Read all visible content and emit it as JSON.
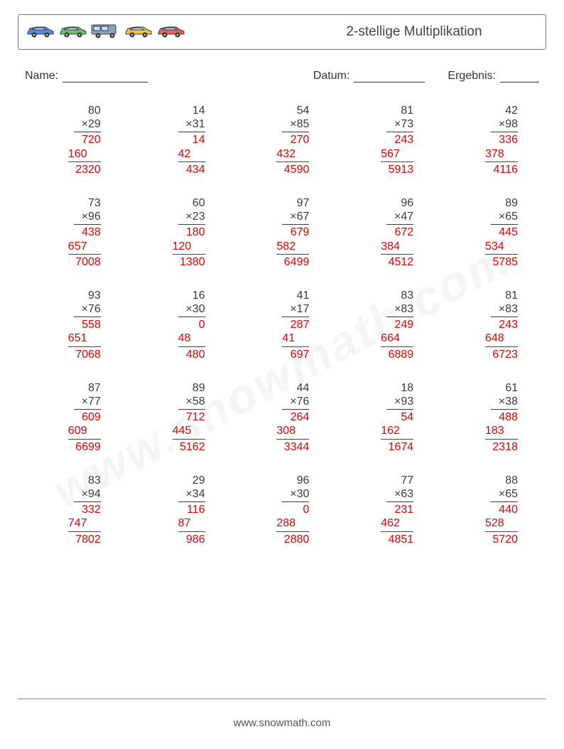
{
  "title": "2-stellige Multiplikation",
  "labels": {
    "name": "Name:",
    "date": "Datum:",
    "result": "Ergebnis:"
  },
  "footer": "www.snowmath.com",
  "watermark": "www.snowmath.com",
  "car_colors": [
    "#5a8bd6",
    "#6ec26e",
    "#8ea0b5",
    "#e8c94c",
    "#e0655c"
  ],
  "problems": [
    {
      "a": "80",
      "b": "×29",
      "p1": "720",
      "p2": "160",
      "ans": "2320"
    },
    {
      "a": "14",
      "b": "×31",
      "p1": "14",
      "p2": "42",
      "ans": "434"
    },
    {
      "a": "54",
      "b": "×85",
      "p1": "270",
      "p2": "432",
      "ans": "4590"
    },
    {
      "a": "81",
      "b": "×73",
      "p1": "243",
      "p2": "567",
      "ans": "5913"
    },
    {
      "a": "42",
      "b": "×98",
      "p1": "336",
      "p2": "378",
      "ans": "4116"
    },
    {
      "a": "73",
      "b": "×96",
      "p1": "438",
      "p2": "657",
      "ans": "7008"
    },
    {
      "a": "60",
      "b": "×23",
      "p1": "180",
      "p2": "120",
      "ans": "1380"
    },
    {
      "a": "97",
      "b": "×67",
      "p1": "679",
      "p2": "582",
      "ans": "6499"
    },
    {
      "a": "96",
      "b": "×47",
      "p1": "672",
      "p2": "384",
      "ans": "4512"
    },
    {
      "a": "89",
      "b": "×65",
      "p1": "445",
      "p2": "534",
      "ans": "5785"
    },
    {
      "a": "93",
      "b": "×76",
      "p1": "558",
      "p2": "651",
      "ans": "7068"
    },
    {
      "a": "16",
      "b": "×30",
      "p1": "0",
      "p2": "48",
      "ans": "480"
    },
    {
      "a": "41",
      "b": "×17",
      "p1": "287",
      "p2": "41",
      "ans": "697"
    },
    {
      "a": "83",
      "b": "×83",
      "p1": "249",
      "p2": "664",
      "ans": "6889"
    },
    {
      "a": "81",
      "b": "×83",
      "p1": "243",
      "p2": "648",
      "ans": "6723"
    },
    {
      "a": "87",
      "b": "×77",
      "p1": "609",
      "p2": "609",
      "ans": "6699"
    },
    {
      "a": "89",
      "b": "×58",
      "p1": "712",
      "p2": "445",
      "ans": "5162"
    },
    {
      "a": "44",
      "b": "×76",
      "p1": "264",
      "p2": "308",
      "ans": "3344"
    },
    {
      "a": "18",
      "b": "×93",
      "p1": "54",
      "p2": "162",
      "ans": "1674"
    },
    {
      "a": "61",
      "b": "×38",
      "p1": "488",
      "p2": "183",
      "ans": "2318"
    },
    {
      "a": "83",
      "b": "×94",
      "p1": "332",
      "p2": "747",
      "ans": "7802"
    },
    {
      "a": "29",
      "b": "×34",
      "p1": "116",
      "p2": "87",
      "ans": "986"
    },
    {
      "a": "96",
      "b": "×30",
      "p1": "0",
      "p2": "288",
      "ans": "2880"
    },
    {
      "a": "77",
      "b": "×63",
      "p1": "231",
      "p2": "462",
      "ans": "4851"
    },
    {
      "a": "88",
      "b": "×65",
      "p1": "440",
      "p2": "528",
      "ans": "5720"
    }
  ]
}
